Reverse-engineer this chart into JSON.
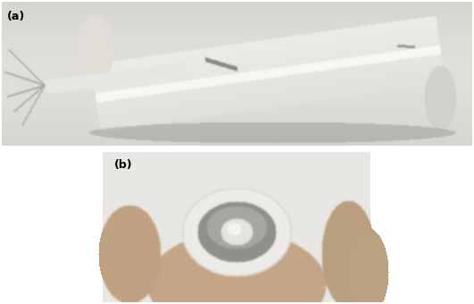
{
  "fig_width": 5.31,
  "fig_height": 3.4,
  "dpi": 100,
  "bg_color": "#ffffff",
  "label_a": "(a)",
  "label_b": "(b)",
  "label_fontsize": 9,
  "label_fontweight": "bold",
  "panel_a_photo_bg": [
    220,
    220,
    218
  ],
  "panel_b_photo_bg": [
    230,
    230,
    228
  ],
  "cyl_color": [
    240,
    238,
    232
  ],
  "cyl_shadow": [
    180,
    178,
    172
  ],
  "wire_color": [
    200,
    198,
    192
  ],
  "hand_color": [
    205,
    175,
    145
  ],
  "metal_color": [
    160,
    160,
    155
  ],
  "electrode_white": [
    238,
    236,
    230
  ]
}
